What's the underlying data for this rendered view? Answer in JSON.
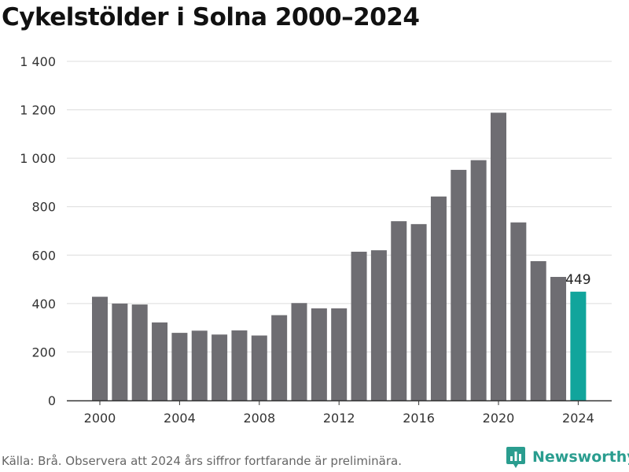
{
  "chart_data": {
    "type": "bar",
    "title": "Cykelstölder i Solna 2000–2024",
    "xlabel": "",
    "ylabel": "",
    "categories": [
      "2000",
      "2001",
      "2002",
      "2003",
      "2004",
      "2005",
      "2006",
      "2007",
      "2008",
      "2009",
      "2010",
      "2011",
      "2012",
      "2013",
      "2014",
      "2015",
      "2016",
      "2017",
      "2018",
      "2019",
      "2020",
      "2021",
      "2022",
      "2023",
      "2024"
    ],
    "values": [
      428,
      400,
      396,
      322,
      279,
      288,
      272,
      289,
      268,
      352,
      402,
      380,
      380,
      614,
      620,
      740,
      728,
      842,
      952,
      992,
      1188,
      735,
      575,
      510,
      449
    ],
    "ylim": [
      0,
      1400
    ],
    "yticks": [
      0,
      200,
      400,
      600,
      800,
      1000,
      1200,
      1400
    ],
    "ytick_labels": [
      "0",
      "200",
      "400",
      "600",
      "800",
      "1 000",
      "1 200",
      "1 400"
    ],
    "xticks": [
      "2000",
      "2004",
      "2008",
      "2012",
      "2016",
      "2020",
      "2024"
    ],
    "annotations": [
      {
        "category": "2024",
        "text": "449"
      }
    ],
    "grid": true,
    "colors": {
      "bar": "#6e6d72",
      "highlight": "#11a59c",
      "grid": "#dcdcdc",
      "axis": "#333333"
    },
    "highlight_category": "2024"
  },
  "footer": {
    "source": "Källa: Brå. Observera att 2024 års siffror fortfarande är preliminära.",
    "logo_text": "Newsworthy",
    "logo_icon": "bar-chart-pin-icon"
  }
}
